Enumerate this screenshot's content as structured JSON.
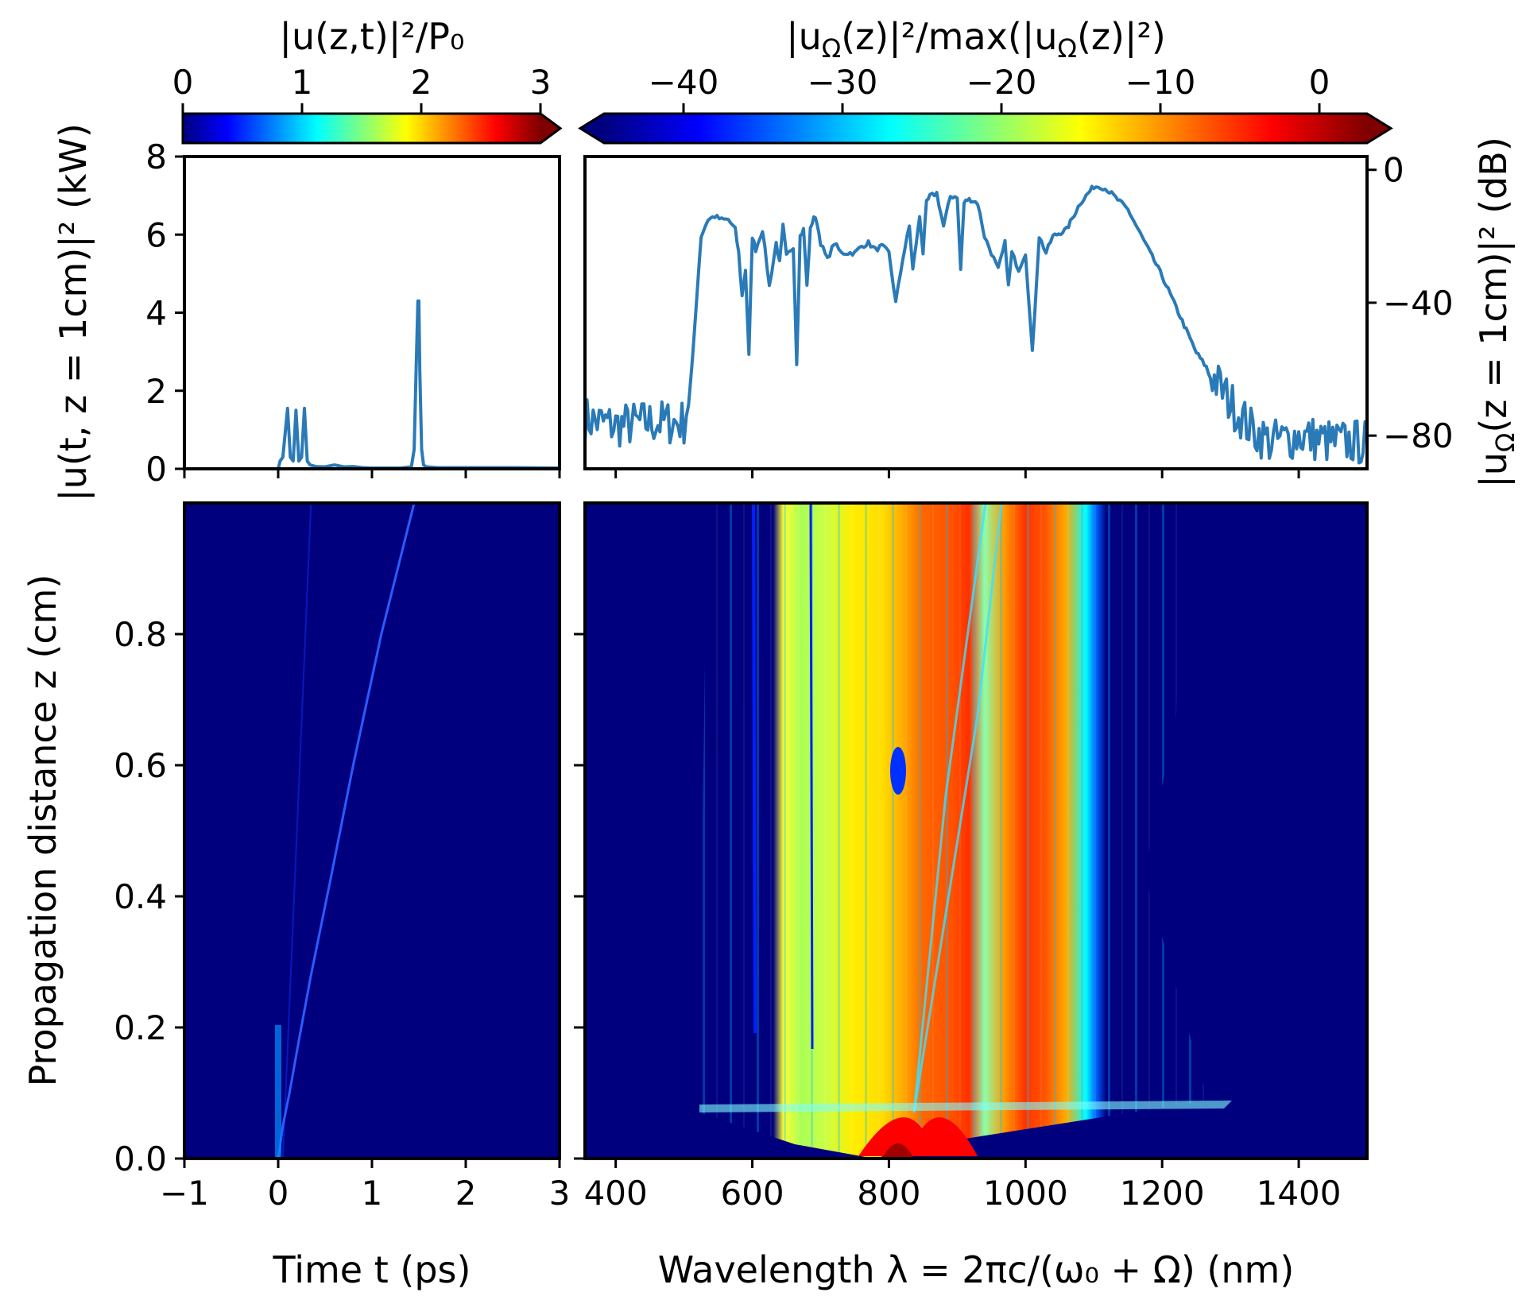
{
  "colors": {
    "line": "#2a7ab8",
    "background_map": "#00007f",
    "jet": [
      "#00007f",
      "#0000ff",
      "#007fff",
      "#00ffff",
      "#7fff7f",
      "#ffff00",
      "#ff7f00",
      "#ff0000",
      "#7f0000"
    ]
  },
  "chart_data": [
    {
      "id": "colorbar-time",
      "type": "colorbar",
      "label": "|u(z,t)|²/P₀",
      "range": [
        0,
        3
      ],
      "ticks": [
        "0",
        "1",
        "2",
        "3"
      ],
      "tick_values": [
        0,
        1,
        2,
        3
      ],
      "extend": "max"
    },
    {
      "id": "colorbar-spectrum",
      "type": "colorbar",
      "label": "|u_Ω(z)|²/max(|u_Ω(z)|²)",
      "range": [
        -45,
        3
      ],
      "ticks": [
        "−40",
        "−30",
        "−20",
        "−10",
        "0"
      ],
      "tick_values": [
        -40,
        -30,
        -20,
        -10,
        0
      ],
      "extend": "both"
    },
    {
      "id": "power-time",
      "type": "line",
      "xlabel": "",
      "ylabel": "|u(t, z = 1cm)|² (kW)",
      "xlim": [
        -1,
        3
      ],
      "ylim": [
        0,
        8
      ],
      "yticks": [
        "0",
        "2",
        "4",
        "6",
        "8"
      ],
      "ytick_values": [
        0,
        2,
        4,
        6,
        8
      ],
      "x": [
        -1,
        0,
        0.02,
        0.05,
        0.1,
        0.13,
        0.16,
        0.19,
        0.22,
        0.25,
        0.28,
        0.31,
        0.34,
        0.37,
        0.4,
        0.5,
        0.6,
        0.7,
        0.8,
        0.9,
        1.0,
        1.3,
        1.42,
        1.45,
        1.47,
        1.49,
        1.5,
        1.51,
        1.53,
        1.55,
        1.58,
        1.7,
        2.0,
        2.5,
        3.0
      ],
      "y": [
        0,
        0,
        0.2,
        0.3,
        1.55,
        0.3,
        0.2,
        1.5,
        0.2,
        0.3,
        1.55,
        0.2,
        0.1,
        0.08,
        0.06,
        0.05,
        0.1,
        0.05,
        0.06,
        0.03,
        0.02,
        0.02,
        0.05,
        0.5,
        2.5,
        4.3,
        4.3,
        2.5,
        0.5,
        0.1,
        0.05,
        0.03,
        0.03,
        0.03,
        0.02
      ]
    },
    {
      "id": "spectrum",
      "type": "line",
      "ylabel": "|u_Ω(z = 1cm)|² (dB)",
      "xlim": [
        355,
        1500
      ],
      "ylim": [
        -90,
        4
      ],
      "yticks": [
        "0",
        "−40",
        "−80"
      ],
      "ytick_values": [
        0,
        -40,
        -80
      ],
      "x": [
        355,
        400,
        450,
        500,
        510,
        518,
        525,
        535,
        545,
        555,
        565,
        575,
        580,
        585,
        590,
        595,
        600,
        605,
        615,
        625,
        635,
        640,
        645,
        650,
        660,
        665,
        670,
        675,
        680,
        685,
        690,
        695,
        700,
        710,
        720,
        730,
        740,
        750,
        760,
        770,
        780,
        790,
        800,
        810,
        820,
        830,
        835,
        840,
        845,
        850,
        855,
        860,
        870,
        880,
        890,
        900,
        905,
        910,
        915,
        920,
        930,
        940,
        950,
        960,
        970,
        975,
        980,
        990,
        1000,
        1010,
        1020,
        1030,
        1040,
        1060,
        1080,
        1100,
        1110,
        1120,
        1150,
        1200,
        1250,
        1300,
        1330,
        1360,
        1400,
        1450,
        1500
      ],
      "y": [
        -75,
        -77,
        -76,
        -76,
        -65,
        -40,
        -20,
        -15,
        -14,
        -15,
        -15,
        -18,
        -25,
        -38,
        -30,
        -56,
        -20,
        -24,
        -18,
        -35,
        -22,
        -28,
        -17,
        -26,
        -23,
        -58,
        -20,
        -18,
        -35,
        -18,
        -14,
        -16,
        -22,
        -27,
        -22,
        -25,
        -25,
        -25,
        -23,
        -22,
        -24,
        -23,
        -25,
        -40,
        -27,
        -17,
        -30,
        -22,
        -14,
        -25,
        -10,
        -8,
        -7,
        -17,
        -8,
        -8,
        -30,
        -10,
        -9,
        -9,
        -10,
        -20,
        -25,
        -30,
        -22,
        -35,
        -25,
        -30,
        -25,
        -55,
        -20,
        -25,
        -20,
        -18,
        -10,
        -5,
        -5,
        -6,
        -12,
        -32,
        -55,
        -70,
        -78,
        -82,
        -80,
        -82,
        -82
      ]
    },
    {
      "id": "map-time",
      "type": "heatmap",
      "xlabel": "Time t (ps)",
      "ylabel": "Propagation distance z (cm)",
      "xlim": [
        -1,
        3
      ],
      "ylim": [
        0,
        1
      ],
      "xticks": [
        "−1",
        "0",
        "1",
        "2",
        "3"
      ],
      "xtick_values": [
        -1,
        0,
        1,
        2,
        3
      ],
      "yticks": [
        "0.0",
        "0.2",
        "0.4",
        "0.6",
        "0.8"
      ],
      "ytick_values": [
        0,
        0.2,
        0.4,
        0.6,
        0.8
      ],
      "trajectory": {
        "t": [
          0,
          0.05,
          0.12,
          0.22,
          0.35,
          0.55,
          0.8,
          1.1,
          1.45
        ],
        "z": [
          0,
          0.05,
          0.1,
          0.18,
          0.28,
          0.42,
          0.6,
          0.8,
          1.0
        ]
      }
    },
    {
      "id": "map-spectrum",
      "type": "heatmap",
      "xlabel": "Wavelength λ = 2πc/(ω₀ + Ω) (nm)",
      "xlim": [
        355,
        1500
      ],
      "ylim": [
        0,
        1
      ],
      "xticks": [
        "400",
        "600",
        "800",
        "1000",
        "1200",
        "1400"
      ],
      "xtick_values": [
        400,
        600,
        800,
        1000,
        1200,
        1400
      ]
    }
  ]
}
